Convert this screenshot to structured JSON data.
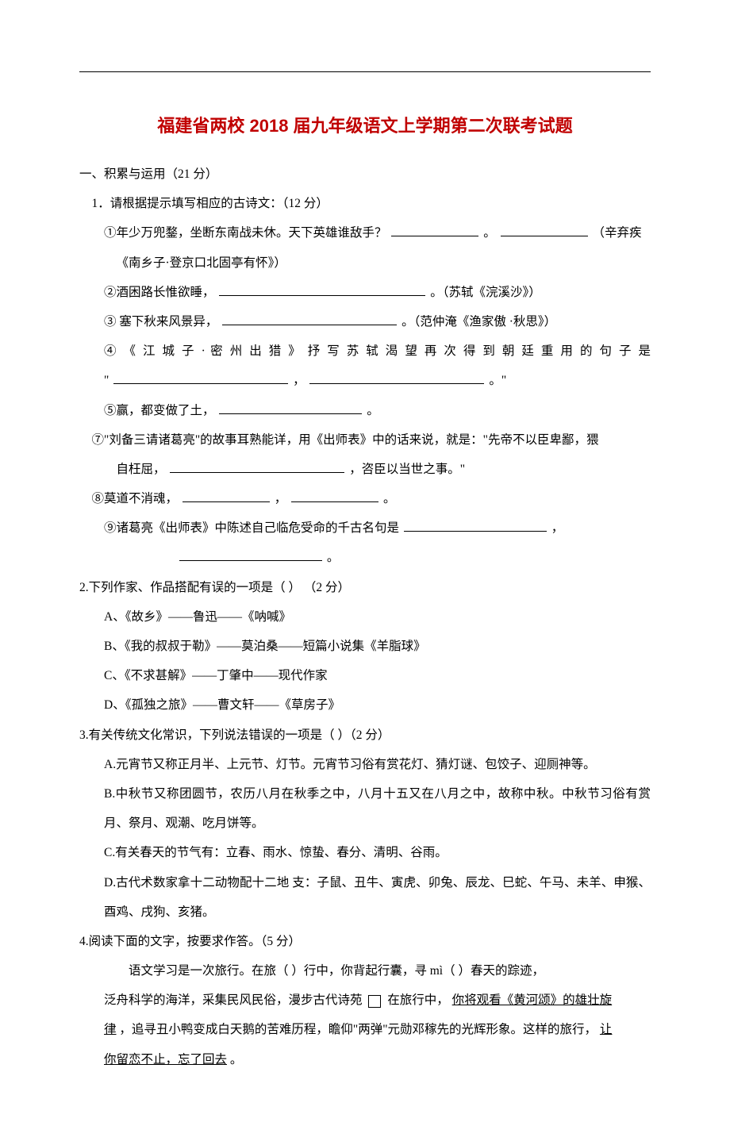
{
  "title": "福建省两校 2018 届九年级语文上学期第二次联考试题",
  "section1": {
    "heading": "一、积累与运用（21 分）",
    "q1": {
      "prompt": "1．请根据提示填写相应的古诗文：（12 分）",
      "items": {
        "i1a": "①年少万兜鍪，坐断东南战未休。天下英雄谁敌手？",
        "i1b": "。",
        "i1c": "（辛弃疾",
        "i1d": "《南乡子·登京口北固亭有怀》）",
        "i2a": "②酒困路长惟欲睡，",
        "i2b": "。（苏轼《浣溪沙》）",
        "i3a": "③ 塞下秋来风景异，",
        "i3b": "。（范仲淹《渔家傲 ·秋思》）",
        "i4a": "④ 《 江 城 子 ·   密 州 出 猎 》 抒 写 苏 轼 渴 望 再 次 得 到 朝 廷 重 用 的 句 子 是",
        "i4b": "\"",
        "i4c": "，",
        "i4d": "。\"",
        "i5a": "⑤赢，都变做了土，",
        "i5b": "。",
        "i7a": "⑦\"刘备三请诸葛亮\"的故事耳熟能详，用《出师表》中的话来说，就是：\"先帝不以臣卑鄙，猥",
        "i7b": "自枉屈，",
        "i7c": "，咨臣以当世之事。\"",
        "i8a": "⑧莫道不消魂，",
        "i8b": "，",
        "i8c": "。",
        "i9a": "⑨诸葛亮《出师表》中陈述自己临危受命的千古名句是",
        "i9b": "，",
        "i9c": "。"
      }
    },
    "q2": {
      "prompt": "2.下列作家、作品搭配有误的一项是（             ） （2 分）",
      "a": "A、《故乡》——鲁迅——《呐喊》",
      "b": "B、《我的叔叔于勒》——莫泊桑——短篇小说集《羊脂球》",
      "c": "C、《不求甚解》——丁肇中——现代作家",
      "d": "D、《孤独之旅》——曹文轩——《草房子》"
    },
    "q3": {
      "prompt": "3.有关传统文化常识，下列说法错误的一项是（         ）（2 分）",
      "a": "A.元宵节又称正月半、上元节、灯节。元宵节习俗有赏花灯、猜灯谜、包饺子、迎厕神等。",
      "b": "B.中秋节又称团圆节，农历八月在秋季之中，八月十五又在八月之中，故称中秋。中秋节习俗有赏月、祭月、观潮、吃月饼等。",
      "c": "C.有关春天的节气有：立春、雨水、惊蛰、春分、清明、谷雨。",
      "d": "D.古代术数家拿十二动物配十二地 支：子鼠、丑牛、寅虎、卯兔、辰龙、巳蛇、午马、未羊、申猴、酉鸡、戌狗、亥猪。"
    },
    "q4": {
      "prompt": "4.阅读下面的文字，按要求作答。（5 分）",
      "p1a": "语文学习是一次旅行。在旅（       ）行中，你背起行囊，寻 mì（      ）春天的踪迹，",
      "p2a": "泛舟科学的海洋，采集民风民俗，漫步古代诗苑",
      "p2b": "  在旅行中，",
      "p2c": "你将观看《黄河颂》的雄壮旋",
      "p3a": "律",
      "p3b": "，追寻丑小鸭变成白天鹅的苦难历程，瞻仰\"两弹\"元勋邓稼先的光辉形象。这样的旅行，",
      "p3c": "让",
      "p4a": "你留恋不止，忘了回去",
      "p4b": "。"
    }
  }
}
